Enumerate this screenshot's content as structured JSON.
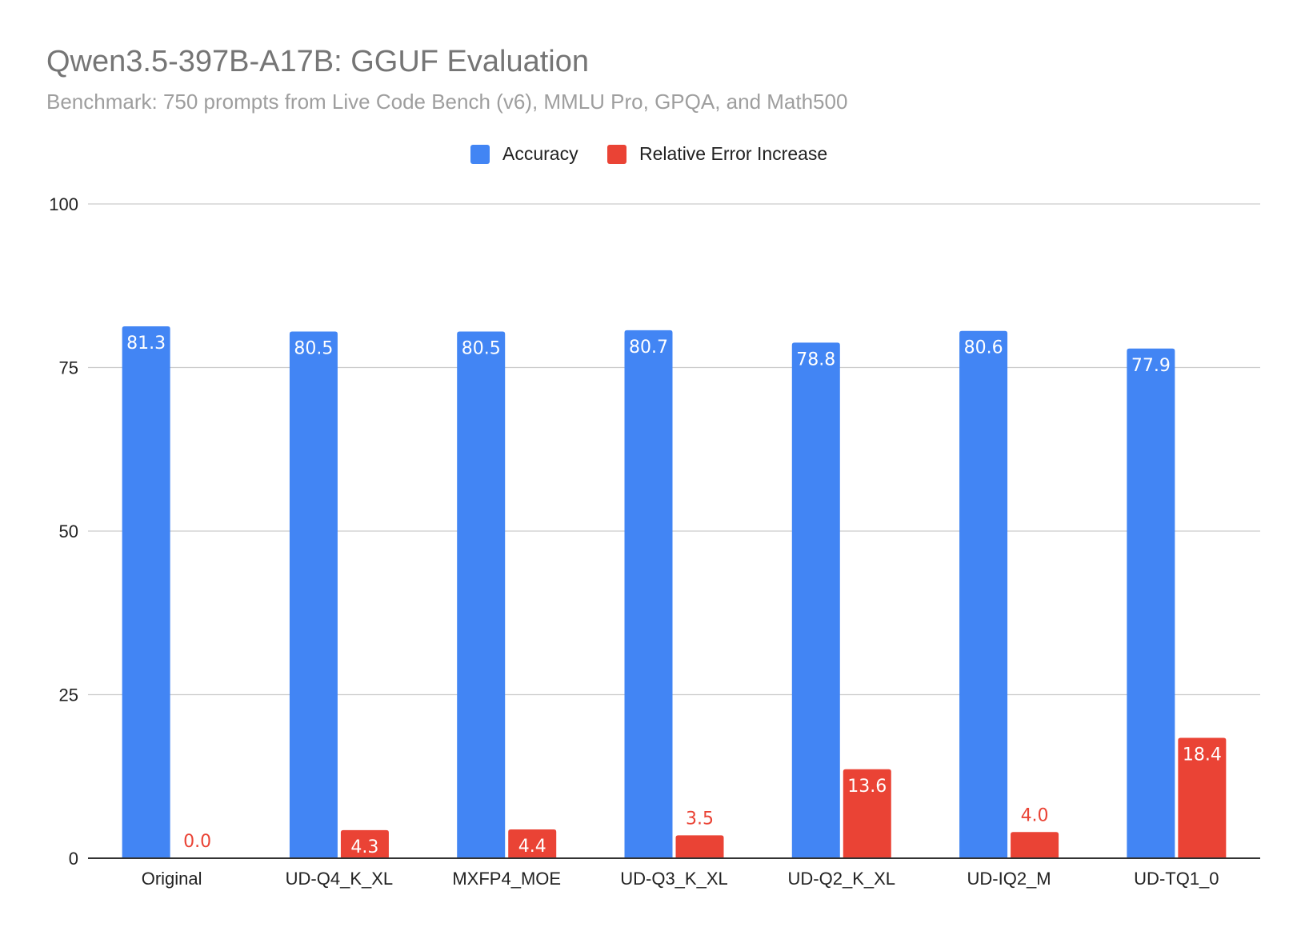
{
  "chart_data": {
    "type": "bar",
    "title": "Qwen3.5-397B-A17B: GGUF Evaluation",
    "subtitle": "Benchmark: 750 prompts from Live Code Bench (v6), MMLU Pro, GPQA, and Math500",
    "categories": [
      "Original",
      "UD-Q4_K_XL",
      "MXFP4_MOE",
      "UD-Q3_K_XL",
      "UD-Q2_K_XL",
      "UD-IQ2_M",
      "UD-TQ1_0"
    ],
    "series": [
      {
        "name": "Accuracy",
        "color": "#4285f4",
        "values": [
          81.3,
          80.5,
          80.5,
          80.7,
          78.8,
          80.6,
          77.9
        ],
        "labels": [
          "81.3",
          "80.5",
          "80.5",
          "80.7",
          "78.8",
          "80.6",
          "77.9"
        ]
      },
      {
        "name": "Relative Error Increase",
        "color": "#ea4335",
        "values": [
          0.0,
          4.3,
          4.4,
          3.5,
          13.6,
          4.0,
          18.4
        ],
        "labels": [
          "0.0",
          "4.3",
          "4.4",
          "3.5",
          "13.6",
          "4.0",
          "18.4"
        ]
      }
    ],
    "ylim": [
      0,
      100
    ],
    "yticks": [
      0,
      25,
      50,
      75,
      100
    ],
    "ytick_labels": [
      "0",
      "25",
      "50",
      "75",
      "100"
    ],
    "xlabel": "",
    "ylabel": "",
    "grid": true,
    "legend_position": "top-center"
  }
}
